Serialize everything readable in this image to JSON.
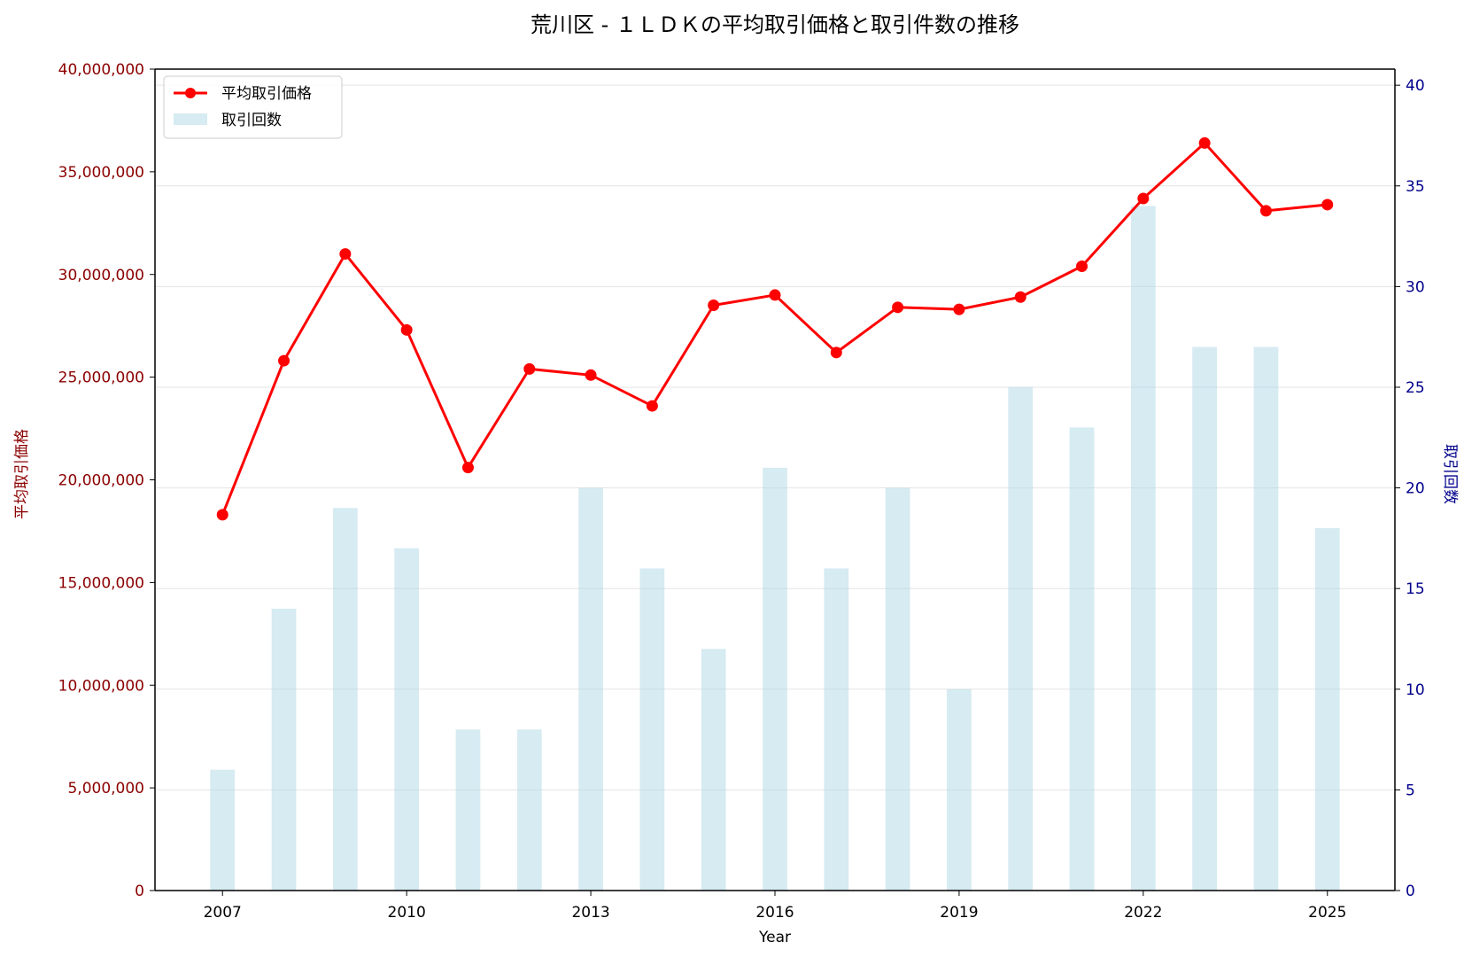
{
  "chart_data": {
    "type": "bar",
    "title": "荒川区 - １ＬＤＫの平均取引価格と取引件数の推移",
    "xlabel": "Year",
    "ylabel_left": "平均取引価格",
    "ylabel_right": "取引回数",
    "x": [
      2007,
      2008,
      2009,
      2010,
      2011,
      2012,
      2013,
      2014,
      2015,
      2016,
      2017,
      2018,
      2019,
      2020,
      2021,
      2022,
      2023,
      2024,
      2025
    ],
    "xticks": [
      "2007",
      "2010",
      "2013",
      "2016",
      "2019",
      "2022",
      "2025"
    ],
    "xlim": [
      2005.9,
      2026.1
    ],
    "ylim_left": [
      0,
      40000000
    ],
    "yticks_left": [
      "0",
      "5,000,000",
      "10,000,000",
      "15,000,000",
      "20,000,000",
      "25,000,000",
      "30,000,000",
      "35,000,000",
      "40,000,000"
    ],
    "ylim_right": [
      0,
      40.8
    ],
    "yticks_right": [
      "0",
      "5",
      "10",
      "15",
      "20",
      "25",
      "30",
      "35",
      "40"
    ],
    "grid": true,
    "legend_position": "top-left",
    "series": [
      {
        "name": "平均取引価格",
        "type": "line",
        "axis": "left",
        "color": "#ff0000",
        "values": [
          18300000,
          25800000,
          31000000,
          27300000,
          20600000,
          25400000,
          25100000,
          23600000,
          28500000,
          29000000,
          26200000,
          28400000,
          28300000,
          28900000,
          30400000,
          33700000,
          36400000,
          33100000,
          33400000
        ]
      },
      {
        "name": "取引回数",
        "type": "bar",
        "axis": "right",
        "color": "#add8e6",
        "values": [
          6,
          14,
          19,
          17,
          8,
          8,
          20,
          16,
          12,
          21,
          16,
          20,
          10,
          25,
          23,
          34,
          27,
          27,
          18
        ]
      }
    ]
  }
}
